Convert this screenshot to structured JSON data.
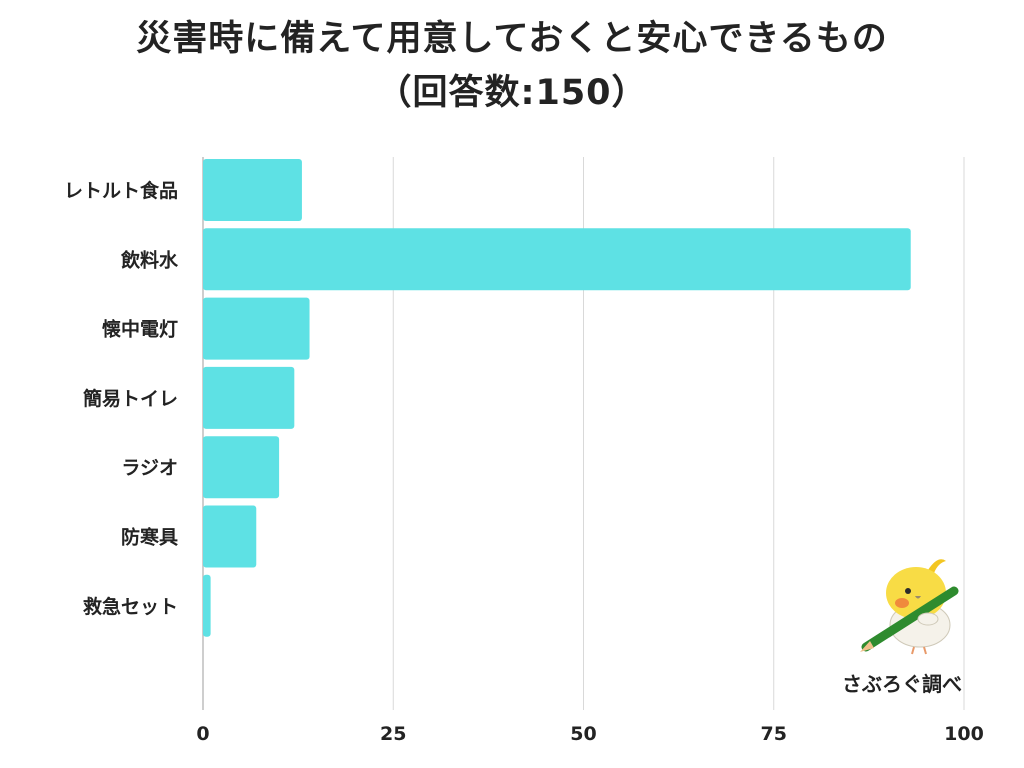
{
  "header": {
    "title_line1": "災害時に備えて用意しておくと安心できるもの",
    "title_line2": "（回答数:150）"
  },
  "credit": "さぶろぐ調べ",
  "colors": {
    "bar": "#5ee1e4",
    "grid": "#d9d9d9",
    "axis": "#bdbdbd",
    "text": "#232323"
  },
  "chart_data": {
    "type": "bar",
    "orientation": "horizontal",
    "categories": [
      "レトルト食品",
      "飲料水",
      "懐中電灯",
      "簡易トイレ",
      "ラジオ",
      "防寒具",
      "救急セット"
    ],
    "values": [
      13,
      93,
      14,
      12,
      10,
      7,
      1
    ],
    "xlim": [
      0,
      100
    ],
    "xticks": [
      0,
      25,
      50,
      75,
      100
    ],
    "grid": true,
    "legend": "none"
  }
}
